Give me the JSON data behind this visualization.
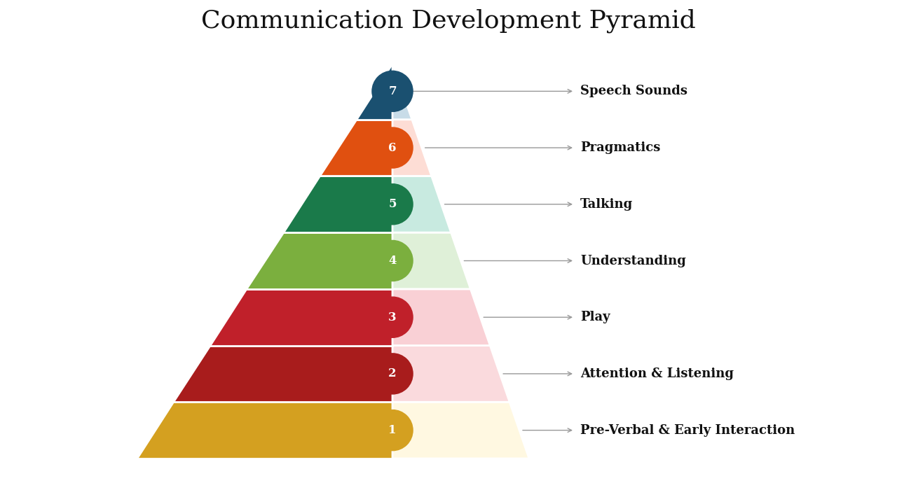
{
  "title": "Communication Development Pyramid",
  "title_fontsize": 26,
  "title_fontfamily": "serif",
  "background_color": "#ffffff",
  "layers": [
    {
      "level": 1,
      "label": "Pre-Verbal & Early Interaction",
      "number": "1",
      "left_color": "#D4A020",
      "right_color": "#FFF8E1"
    },
    {
      "level": 2,
      "label": "Attention & Listening",
      "number": "2",
      "left_color": "#A81C1C",
      "right_color": "#FADADD"
    },
    {
      "level": 3,
      "label": "Play",
      "number": "3",
      "left_color": "#C0202A",
      "right_color": "#F9D0D5"
    },
    {
      "level": 4,
      "label": "Understanding",
      "number": "4",
      "left_color": "#7BAF3E",
      "right_color": "#DFF0D8"
    },
    {
      "level": 5,
      "label": "Talking",
      "number": "5",
      "left_color": "#1A7A4A",
      "right_color": "#C8EAE0"
    },
    {
      "level": 6,
      "label": "Pragmatics",
      "number": "6",
      "left_color": "#E05010",
      "right_color": "#FDDDD5"
    },
    {
      "level": 7,
      "label": "Speech Sounds",
      "number": "7",
      "left_color": "#1A5070",
      "right_color": "#C8DCE8"
    }
  ],
  "label_fontsize": 13,
  "number_fontsize": 12
}
